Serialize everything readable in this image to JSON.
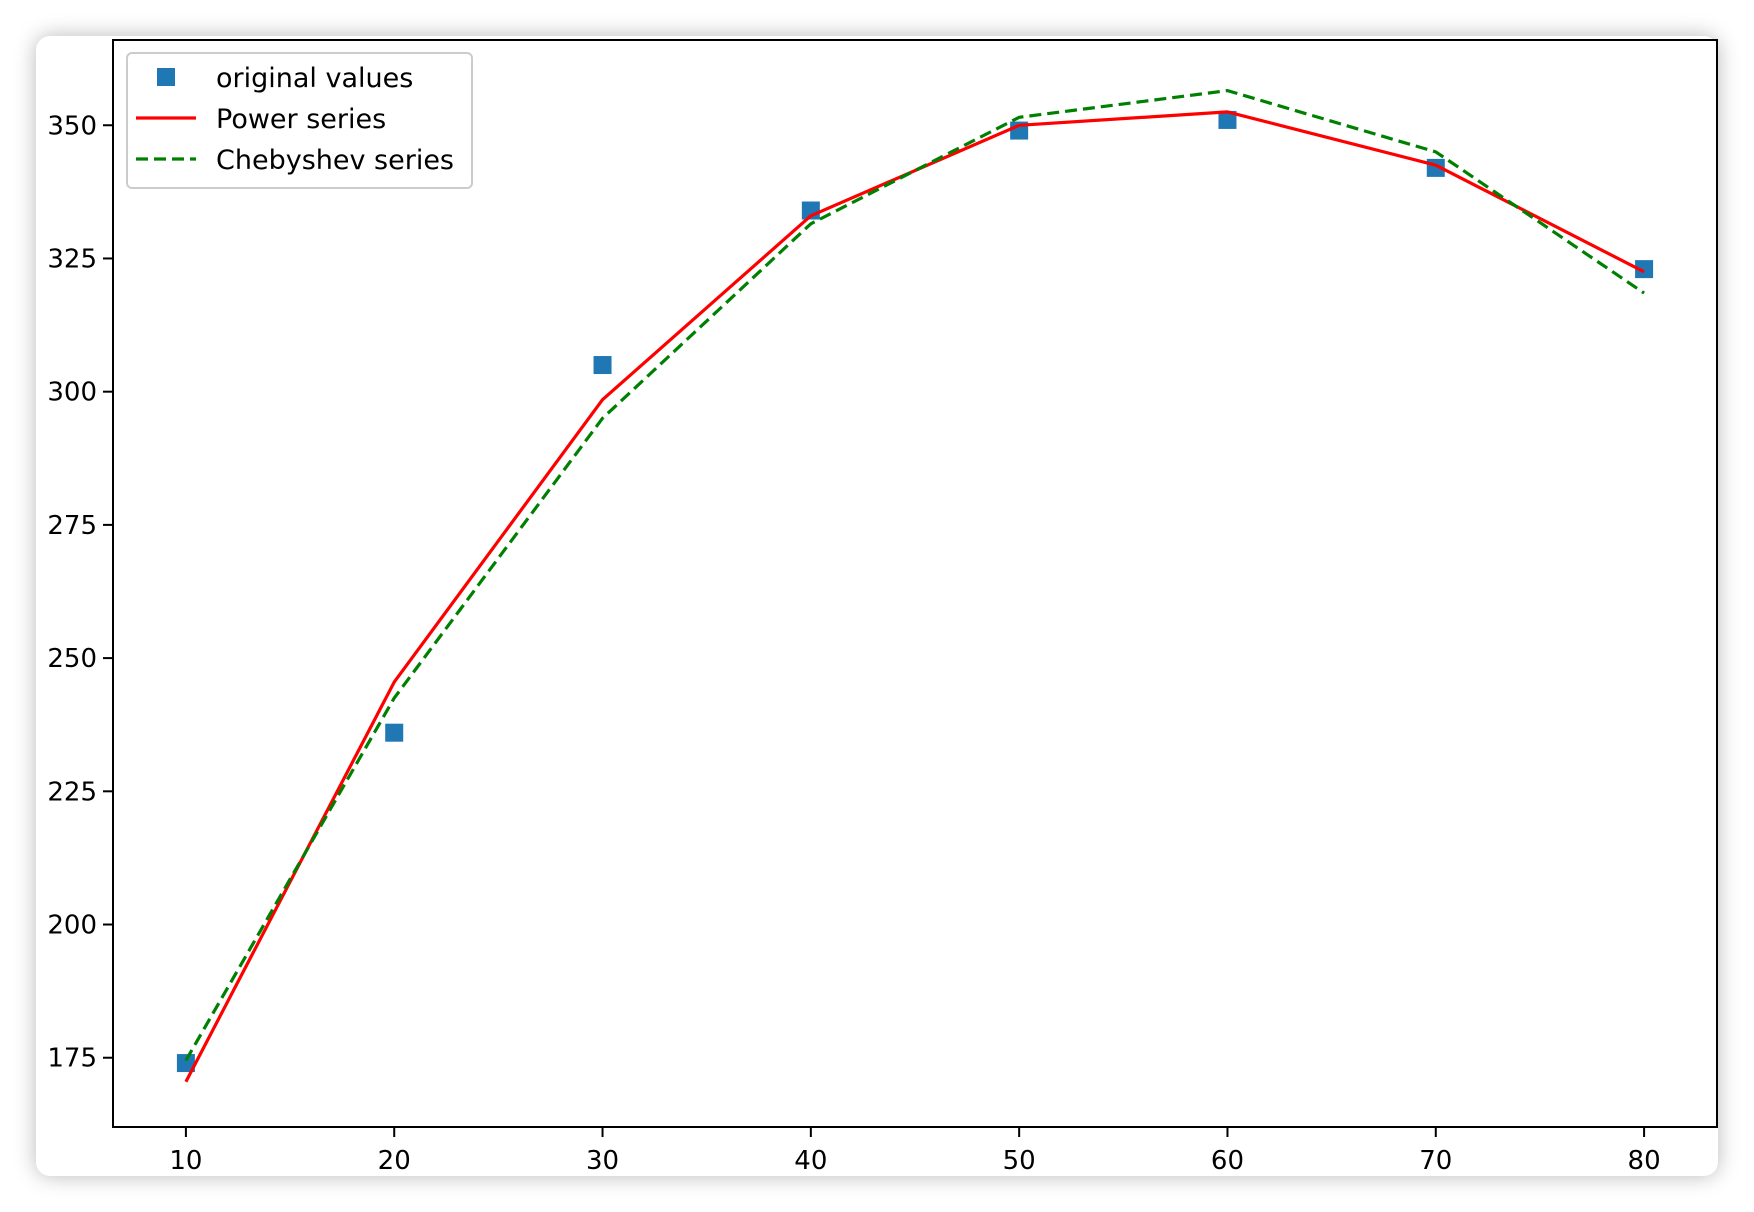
{
  "chart_data": {
    "type": "line",
    "title": "",
    "xlabel": "",
    "ylabel": "",
    "xlim": [
      6.5,
      83.5
    ],
    "ylim": [
      162,
      366
    ],
    "x_ticks": [
      "10",
      "20",
      "30",
      "40",
      "50",
      "60",
      "70",
      "80"
    ],
    "y_ticks": [
      "175",
      "200",
      "225",
      "250",
      "275",
      "300",
      "325",
      "350"
    ],
    "legend_position": "top-left",
    "grid": false,
    "series": [
      {
        "name": "original values",
        "kind": "scatter",
        "marker": "square",
        "color": "#1f77b4",
        "x": [
          10,
          20,
          30,
          40,
          50,
          60,
          70,
          80
        ],
        "y": [
          174,
          236,
          305,
          334,
          349,
          351,
          342,
          323
        ]
      },
      {
        "name": "Power series",
        "kind": "line",
        "dash": "solid",
        "color": "#ff0000",
        "x": [
          10,
          20,
          30,
          40,
          50,
          60,
          70,
          80
        ],
        "y": [
          170.5,
          245.5,
          298.5,
          333.0,
          350.0,
          352.5,
          342.5,
          322.5
        ]
      },
      {
        "name": "Chebyshev series",
        "kind": "line",
        "dash": "dashed",
        "color": "#008000",
        "x": [
          10,
          20,
          30,
          40,
          50,
          60,
          70,
          80
        ],
        "y": [
          174.5,
          242.5,
          295.0,
          331.5,
          351.5,
          356.5,
          345.0,
          318.5
        ]
      }
    ]
  }
}
